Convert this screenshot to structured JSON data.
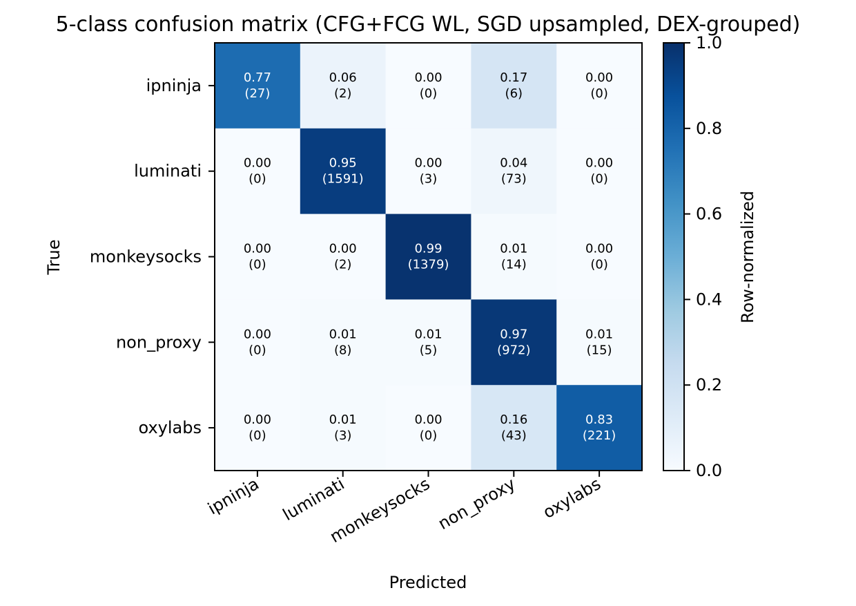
{
  "chart_data": {
    "type": "heatmap",
    "title": "5-class confusion matrix (CFG+FCG WL, SGD upsampled, DEX-grouped)",
    "xlabel": "Predicted",
    "ylabel": "True",
    "x_categories": [
      "ipninja",
      "luminati",
      "monkeysocks",
      "non_proxy",
      "oxylabs"
    ],
    "y_categories": [
      "ipninja",
      "luminati",
      "monkeysocks",
      "non_proxy",
      "oxylabs"
    ],
    "values": [
      [
        0.77,
        0.06,
        0.0,
        0.17,
        0.0
      ],
      [
        0.0,
        0.95,
        0.0,
        0.04,
        0.0
      ],
      [
        0.0,
        0.0,
        0.99,
        0.01,
        0.0
      ],
      [
        0.0,
        0.01,
        0.01,
        0.97,
        0.01
      ],
      [
        0.0,
        0.01,
        0.0,
        0.16,
        0.83
      ]
    ],
    "value_labels": [
      [
        "0.77",
        "0.06",
        "0.00",
        "0.17",
        "0.00"
      ],
      [
        "0.00",
        "0.95",
        "0.00",
        "0.04",
        "0.00"
      ],
      [
        "0.00",
        "0.00",
        "0.99",
        "0.01",
        "0.00"
      ],
      [
        "0.00",
        "0.01",
        "0.01",
        "0.97",
        "0.01"
      ],
      [
        "0.00",
        "0.01",
        "0.00",
        "0.16",
        "0.83"
      ]
    ],
    "count_labels": [
      [
        "(27)",
        "(2)",
        "(0)",
        "(6)",
        "(0)"
      ],
      [
        "(0)",
        "(1591)",
        "(3)",
        "(73)",
        "(0)"
      ],
      [
        "(0)",
        "(2)",
        "(1379)",
        "(14)",
        "(0)"
      ],
      [
        "(0)",
        "(8)",
        "(5)",
        "(972)",
        "(15)"
      ],
      [
        "(0)",
        "(3)",
        "(0)",
        "(43)",
        "(221)"
      ]
    ],
    "colorbar": {
      "label": "Row-normalized",
      "range": [
        0.0,
        1.0
      ],
      "ticks": [
        "0.0",
        "0.2",
        "0.4",
        "0.6",
        "0.8",
        "1.0"
      ],
      "colormap": "Blues",
      "color_low": "#f7fbff",
      "color_high": "#08306b"
    },
    "grid": false
  }
}
